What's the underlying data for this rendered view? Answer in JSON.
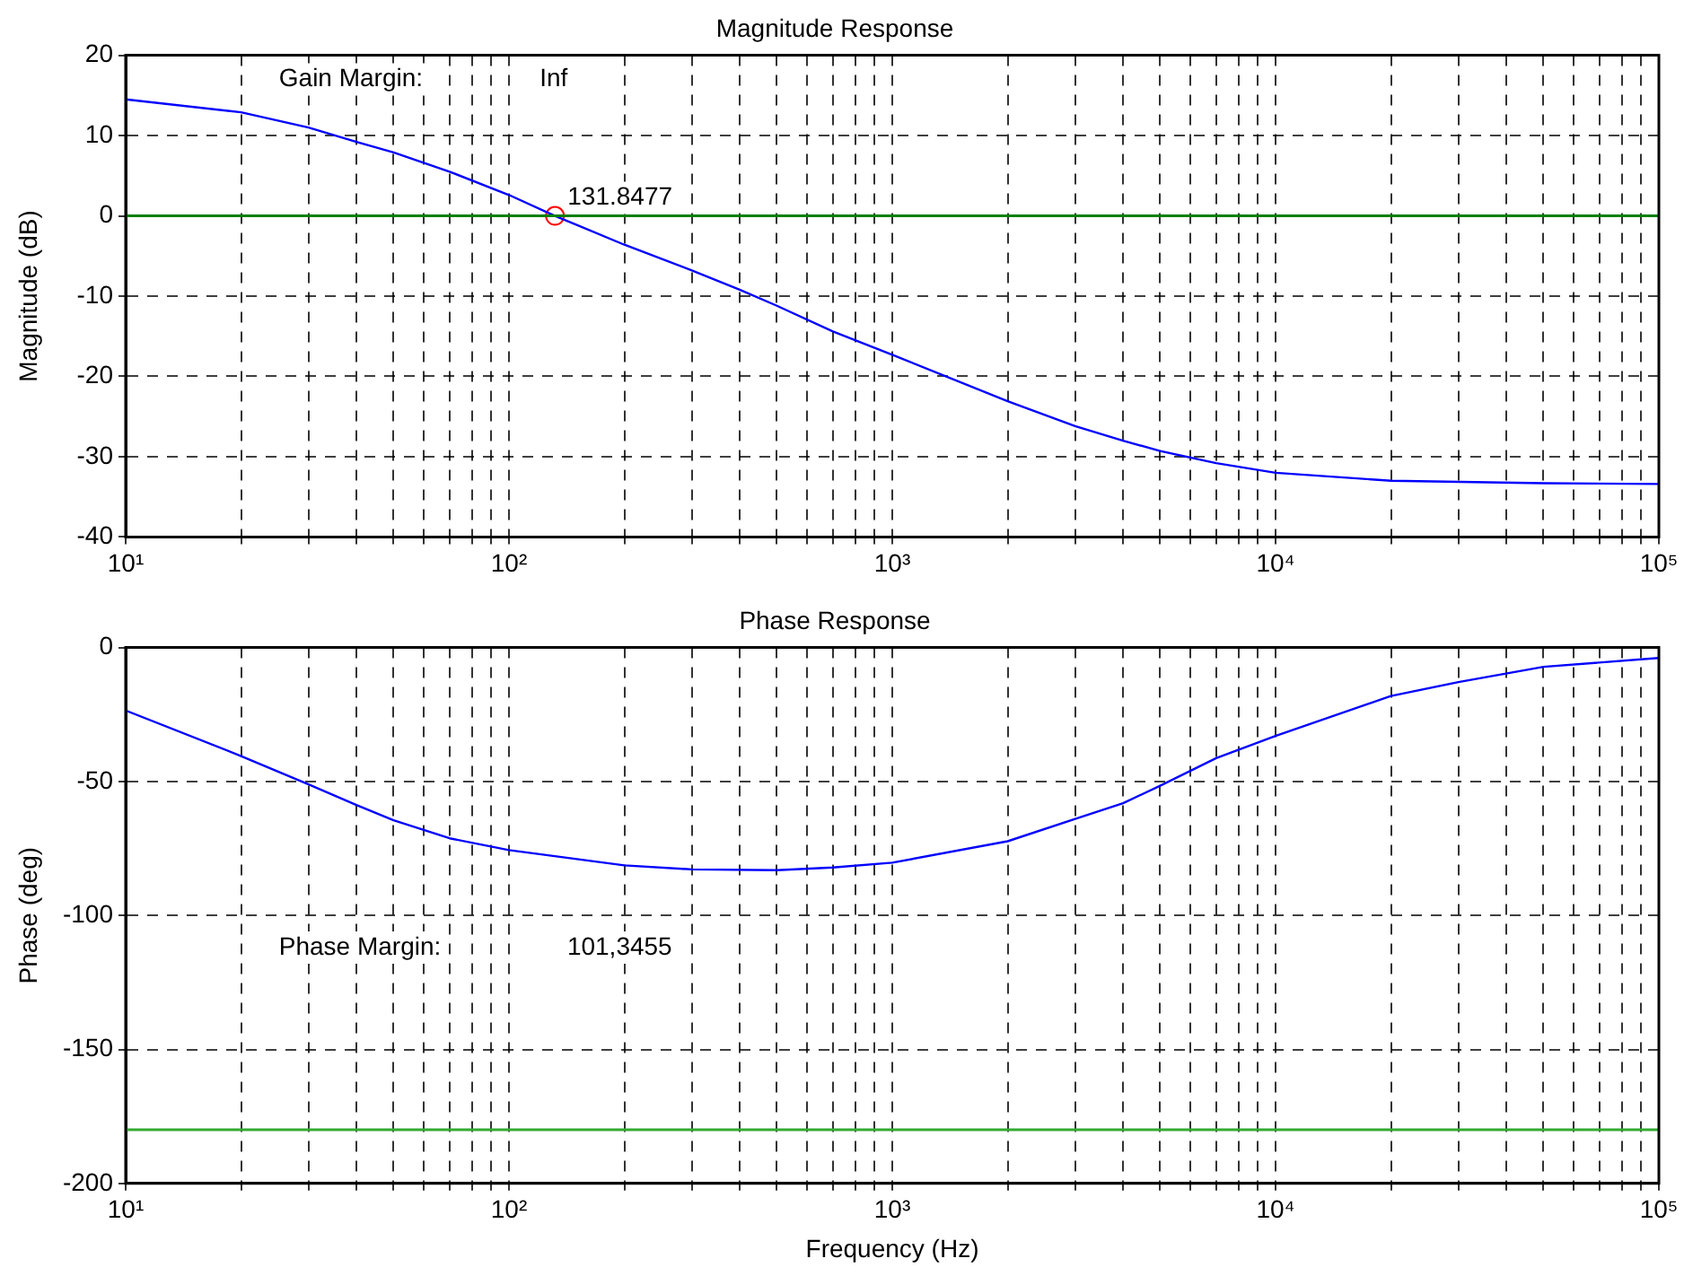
{
  "chart_data": [
    {
      "type": "line",
      "title": "Magnitude Response",
      "ylabel": "Magnitude (dB)",
      "log": "x",
      "grid": true,
      "xlim": [
        10,
        100000
      ],
      "xticks": [
        {
          "value": 10,
          "label": "10¹"
        },
        {
          "value": 20,
          "label": null
        },
        {
          "value": 30,
          "label": null
        },
        {
          "value": 40,
          "label": null
        },
        {
          "value": 50,
          "label": null
        },
        {
          "value": 60,
          "label": null
        },
        {
          "value": 70,
          "label": null
        },
        {
          "value": 80,
          "label": null
        },
        {
          "value": 90,
          "label": null
        },
        {
          "value": 100,
          "label": "10²"
        },
        {
          "value": 200,
          "label": null
        },
        {
          "value": 300,
          "label": null
        },
        {
          "value": 400,
          "label": null
        },
        {
          "value": 500,
          "label": null
        },
        {
          "value": 600,
          "label": null
        },
        {
          "value": 700,
          "label": null
        },
        {
          "value": 800,
          "label": null
        },
        {
          "value": 900,
          "label": null
        },
        {
          "value": 1000,
          "label": "10³"
        },
        {
          "value": 2000,
          "label": null
        },
        {
          "value": 3000,
          "label": null
        },
        {
          "value": 4000,
          "label": null
        },
        {
          "value": 5000,
          "label": null
        },
        {
          "value": 6000,
          "label": null
        },
        {
          "value": 7000,
          "label": null
        },
        {
          "value": 8000,
          "label": null
        },
        {
          "value": 9000,
          "label": null
        },
        {
          "value": 10000,
          "label": "10⁴"
        },
        {
          "value": 20000,
          "label": null
        },
        {
          "value": 30000,
          "label": null
        },
        {
          "value": 40000,
          "label": null
        },
        {
          "value": 50000,
          "label": null
        },
        {
          "value": 60000,
          "label": null
        },
        {
          "value": 70000,
          "label": null
        },
        {
          "value": 80000,
          "label": null
        },
        {
          "value": 90000,
          "label": null
        },
        {
          "value": 100000,
          "label": "10⁵"
        }
      ],
      "ylim": [
        -40,
        20
      ],
      "yticks": [
        -40,
        -30,
        -20,
        -10,
        0,
        10,
        20
      ],
      "series": [
        {
          "color": "#0000ff",
          "marker": "none",
          "x": [
            10,
            20,
            30,
            40,
            50,
            70,
            100,
            131.8477,
            200,
            300,
            400,
            500,
            700,
            1000,
            2000,
            3000,
            4000,
            5000,
            7000,
            10000,
            20000,
            50000,
            100000
          ],
          "values": [
            14.5,
            12.9,
            11.0,
            9.2,
            7.9,
            5.5,
            2.6,
            0,
            -3.6,
            -6.8,
            -9.2,
            -11.2,
            -14.4,
            -17.3,
            -23.1,
            -26.2,
            -28.0,
            -29.3,
            -30.8,
            -32.0,
            -33.0,
            -33.3,
            -33.4
          ]
        },
        {
          "type": "scatter",
          "color": "#ff0000",
          "marker": "circle",
          "x": [
            131.8477
          ],
          "values": [
            0
          ]
        }
      ],
      "ref_lines": [
        {
          "axis": "y",
          "value": 0,
          "color": "#008000"
        }
      ],
      "annotations": [
        "Gain Margin:",
        "Inf",
        {
          "text": "131.8477",
          "x": 131.8477,
          "y": 0
        }
      ]
    },
    {
      "type": "line",
      "title": "Phase Response",
      "xlabel": "Frequency (Hz)",
      "ylabel": "Phase (deg)",
      "log": "x",
      "grid": true,
      "xlim": [
        10,
        100000
      ],
      "xticks": [
        {
          "value": 10,
          "label": "10¹"
        },
        {
          "value": 20,
          "label": null
        },
        {
          "value": 30,
          "label": null
        },
        {
          "value": 40,
          "label": null
        },
        {
          "value": 50,
          "label": null
        },
        {
          "value": 60,
          "label": null
        },
        {
          "value": 70,
          "label": null
        },
        {
          "value": 80,
          "label": null
        },
        {
          "value": 90,
          "label": null
        },
        {
          "value": 100,
          "label": "10²"
        },
        {
          "value": 200,
          "label": null
        },
        {
          "value": 300,
          "label": null
        },
        {
          "value": 400,
          "label": null
        },
        {
          "value": 500,
          "label": null
        },
        {
          "value": 600,
          "label": null
        },
        {
          "value": 700,
          "label": null
        },
        {
          "value": 800,
          "label": null
        },
        {
          "value": 900,
          "label": null
        },
        {
          "value": 1000,
          "label": "10³"
        },
        {
          "value": 2000,
          "label": null
        },
        {
          "value": 3000,
          "label": null
        },
        {
          "value": 4000,
          "label": null
        },
        {
          "value": 5000,
          "label": null
        },
        {
          "value": 6000,
          "label": null
        },
        {
          "value": 7000,
          "label": null
        },
        {
          "value": 8000,
          "label": null
        },
        {
          "value": 9000,
          "label": null
        },
        {
          "value": 10000,
          "label": "10⁴"
        },
        {
          "value": 20000,
          "label": null
        },
        {
          "value": 30000,
          "label": null
        },
        {
          "value": 40000,
          "label": null
        },
        {
          "value": 50000,
          "label": null
        },
        {
          "value": 60000,
          "label": null
        },
        {
          "value": 70000,
          "label": null
        },
        {
          "value": 80000,
          "label": null
        },
        {
          "value": 90000,
          "label": null
        },
        {
          "value": 100000,
          "label": "10⁵"
        }
      ],
      "ylim": [
        -200,
        0
      ],
      "yticks": [
        -200,
        -150,
        -100,
        -50,
        0
      ],
      "series": [
        {
          "color": "#0000ff",
          "marker": "none",
          "x": [
            10,
            20,
            30,
            40,
            50,
            70,
            100,
            200,
            300,
            500,
            700,
            1000,
            2000,
            3000,
            4000,
            5000,
            7000,
            10000,
            20000,
            30000,
            50000,
            100000
          ],
          "values": [
            -23.5,
            -40.5,
            -51.1,
            -58.8,
            -64.5,
            -71.2,
            -75.6,
            -81.3,
            -82.8,
            -83.1,
            -82.1,
            -80.3,
            -72.3,
            -64.0,
            -58.1,
            -51.6,
            -41.3,
            -33.0,
            -18.1,
            -12.9,
            -7.2,
            -3.9
          ]
        }
      ],
      "ref_lines": [
        {
          "axis": "y",
          "value": -180,
          "color": "#33aa33"
        }
      ],
      "annotations": [
        "Phase Margin:",
        "101,3455"
      ]
    }
  ]
}
